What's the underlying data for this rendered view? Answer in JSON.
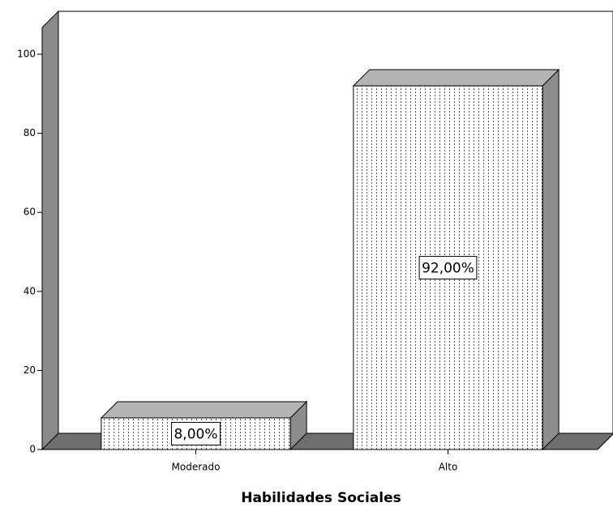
{
  "chart_data": {
    "type": "bar3d",
    "x_label": "Habilidades Sociales",
    "categories": [
      "Moderado",
      "Alto"
    ],
    "values": [
      8,
      92
    ],
    "value_labels": [
      "8,00%",
      "92,00%"
    ],
    "ylim": [
      0,
      100
    ],
    "yticks": [
      0,
      20,
      40,
      60,
      80,
      100
    ]
  }
}
